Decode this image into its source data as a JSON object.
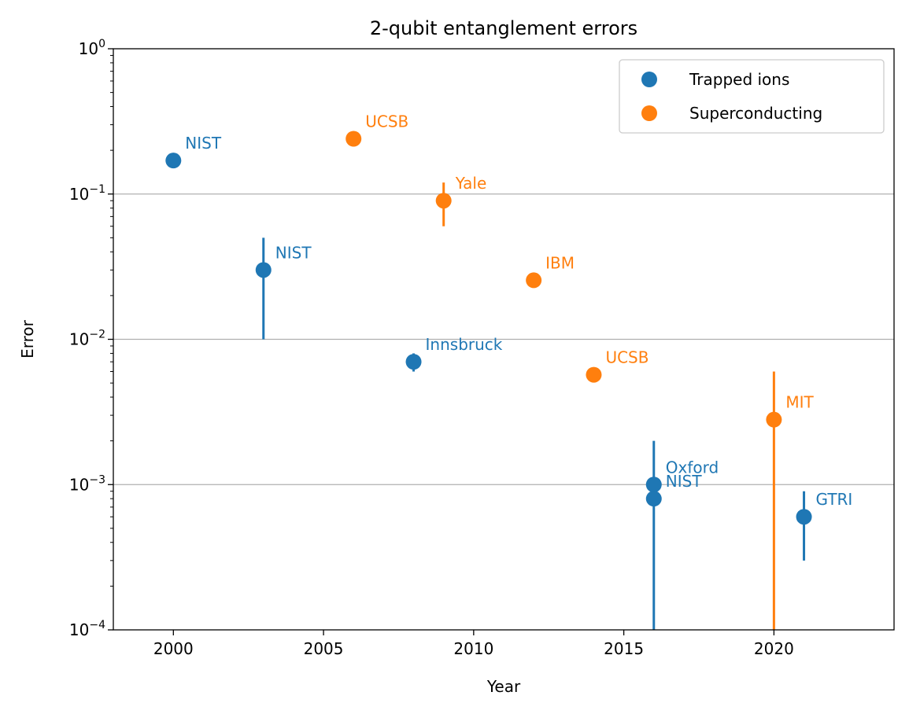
{
  "chart_data": {
    "type": "scatter",
    "title": "2-qubit entanglement errors",
    "xlabel": "Year",
    "ylabel": "Error",
    "xlim": [
      1998,
      2024
    ],
    "ylim": [
      0.0001,
      1
    ],
    "yscale": "log",
    "x_ticks": [
      "2000",
      "2005",
      "2010",
      "2015",
      "2020"
    ],
    "x_tick_values": [
      2000,
      2005,
      2010,
      2015,
      2020
    ],
    "y_ticks": [
      {
        "value": 0.0001,
        "base": "10",
        "exp": "−4"
      },
      {
        "value": 0.001,
        "base": "10",
        "exp": "−3"
      },
      {
        "value": 0.01,
        "base": "10",
        "exp": "−2"
      },
      {
        "value": 0.1,
        "base": "10",
        "exp": "−1"
      },
      {
        "value": 1,
        "base": "10",
        "exp": "0"
      }
    ],
    "grid": "horizontal major lines",
    "legend_position": "top-right",
    "series": [
      {
        "name": "Trapped ions",
        "color": "#1f77b4",
        "points": [
          {
            "x": 2000,
            "y": 0.17,
            "label": "NIST"
          },
          {
            "x": 2003,
            "y": 0.03,
            "label": "NIST",
            "err_low": 0.01,
            "err_high": 0.05
          },
          {
            "x": 2008,
            "y": 0.007,
            "label": "Innsbruck",
            "err_low": 0.006,
            "err_high": 0.008
          },
          {
            "x": 2016,
            "y": 0.001,
            "label": "Oxford",
            "err_low": 1e-05,
            "err_high": 0.002
          },
          {
            "x": 2016,
            "y": 0.0008,
            "label": "NIST"
          },
          {
            "x": 2021,
            "y": 0.0006,
            "label": "GTRI",
            "err_low": 0.0003,
            "err_high": 0.0009
          }
        ]
      },
      {
        "name": "Superconducting",
        "color": "#ff7f0e",
        "points": [
          {
            "x": 2006,
            "y": 0.24,
            "label": "UCSB"
          },
          {
            "x": 2009,
            "y": 0.09,
            "label": "Yale",
            "err_low": 0.06,
            "err_high": 0.12
          },
          {
            "x": 2012,
            "y": 0.0255,
            "label": "IBM"
          },
          {
            "x": 2014,
            "y": 0.0057,
            "label": "UCSB"
          },
          {
            "x": 2020,
            "y": 0.0028,
            "label": "MIT",
            "err_low": 1e-05,
            "err_high": 0.006
          }
        ]
      }
    ]
  }
}
